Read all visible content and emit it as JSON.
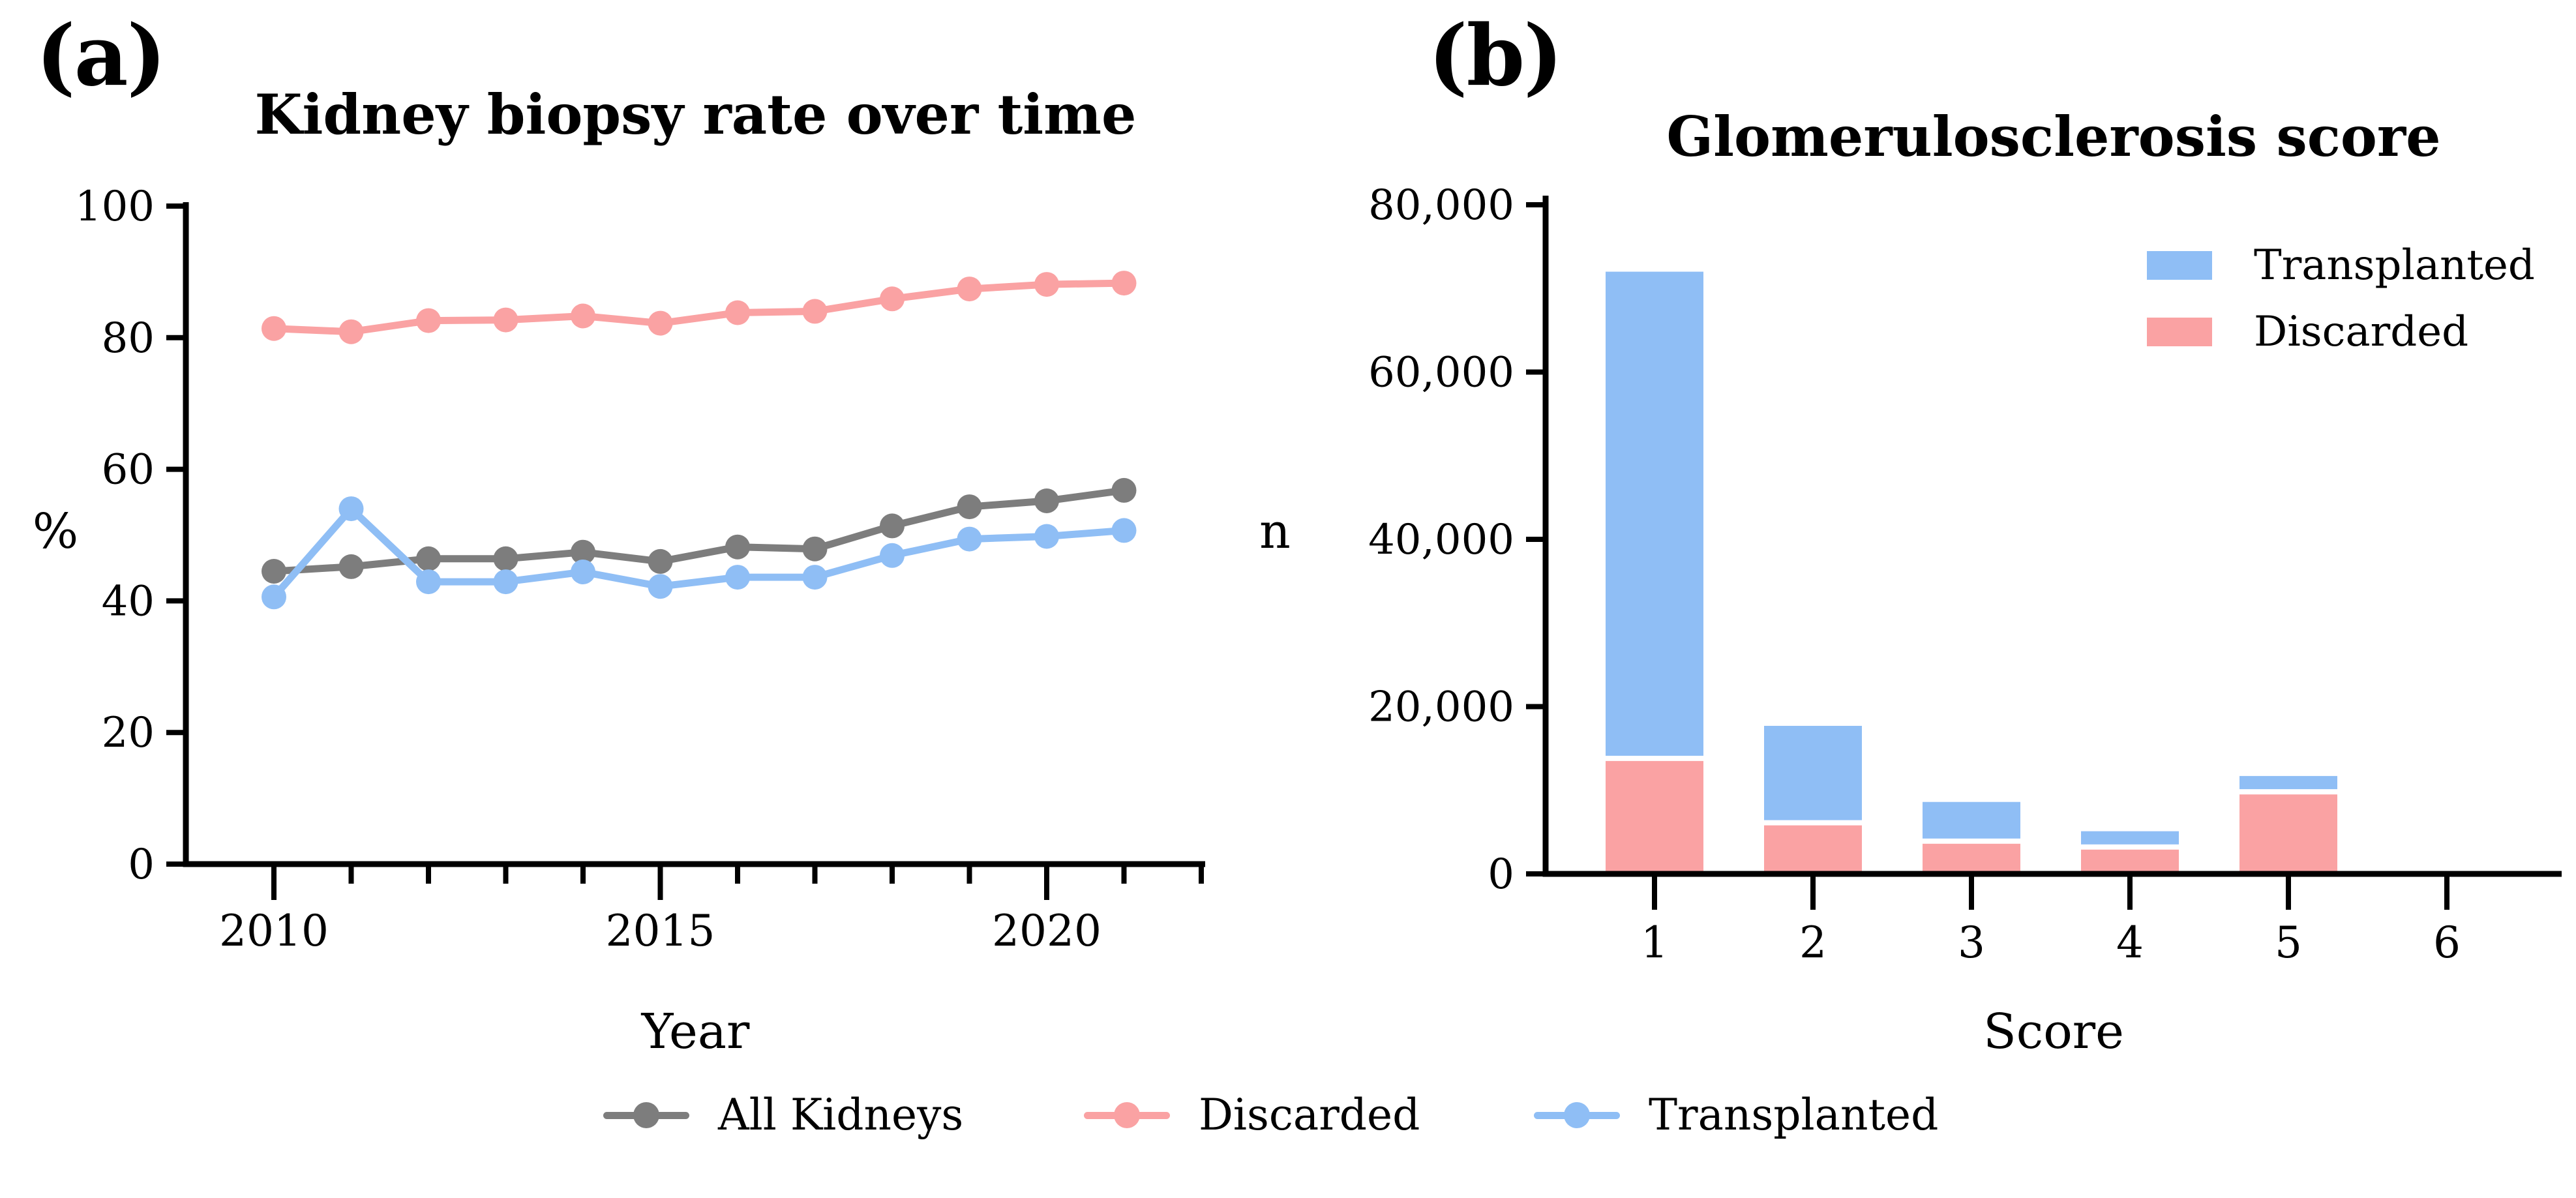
{
  "figure_labels": {
    "a": "(a)",
    "b": "(b)"
  },
  "chart_data": [
    {
      "panel": "a",
      "type": "line",
      "title": "Kidney biopsy rate over time",
      "xlabel": "Year",
      "ylabel": "%",
      "ylim": [
        0,
        100
      ],
      "y_ticks": [
        0,
        20,
        40,
        60,
        80,
        100
      ],
      "x_ticks": [
        2010,
        2011,
        2012,
        2013,
        2014,
        2015,
        2016,
        2017,
        2018,
        2019,
        2020,
        2021,
        2022
      ],
      "x_major_ticks": [
        2010,
        2015,
        2020
      ],
      "x": [
        2010,
        2011,
        2012,
        2013,
        2014,
        2015,
        2016,
        2017,
        2018,
        2019,
        2020,
        2021
      ],
      "grid": false,
      "legend_position": "bottom",
      "series": [
        {
          "name": "All Kidneys",
          "color": "#7d7d7d",
          "values": [
            44.5,
            45.2,
            46.4,
            46.4,
            47.4,
            46.0,
            48.2,
            47.9,
            51.4,
            54.3,
            55.2,
            56.8
          ]
        },
        {
          "name": "Discarded",
          "color": "#faa2a3",
          "values": [
            81.4,
            80.9,
            82.6,
            82.7,
            83.3,
            82.2,
            83.8,
            84.0,
            85.9,
            87.4,
            88.1,
            88.3
          ]
        },
        {
          "name": "Transplanted",
          "color": "#8fbef5",
          "values": [
            40.6,
            54.0,
            42.9,
            42.9,
            44.4,
            42.2,
            43.6,
            43.6,
            46.9,
            49.4,
            49.8,
            50.7
          ]
        }
      ]
    },
    {
      "panel": "b",
      "type": "stacked-bar",
      "title": "Glomerulosclerosis score",
      "xlabel": "Score",
      "ylabel": "n",
      "ylim": [
        0,
        80000
      ],
      "y_ticks": [
        0,
        20000,
        40000,
        60000,
        80000
      ],
      "y_tick_labels": [
        "0",
        "20,000",
        "40,000",
        "60,000",
        "80,000"
      ],
      "categories": [
        "1",
        "2",
        "3",
        "4",
        "5",
        "6"
      ],
      "grid": false,
      "legend_position": "top-right",
      "series": [
        {
          "name": "Discarded",
          "color": "#faa2a3",
          "values": [
            13500,
            5800,
            3600,
            2900,
            9500,
            0
          ]
        },
        {
          "name": "Transplanted",
          "color": "#8fbef5",
          "values": [
            58500,
            11900,
            5000,
            2200,
            2200,
            0
          ]
        }
      ]
    }
  ],
  "panel_b_legend": {
    "items": [
      {
        "label": "Transplanted",
        "color": "#8fbef5"
      },
      {
        "label": "Discarded",
        "color": "#faa2a3"
      }
    ]
  },
  "bottom_legend": {
    "items": [
      {
        "label": "All Kidneys",
        "color": "#7d7d7d"
      },
      {
        "label": "Discarded",
        "color": "#faa2a3"
      },
      {
        "label": "Transplanted",
        "color": "#8fbef5"
      }
    ]
  }
}
